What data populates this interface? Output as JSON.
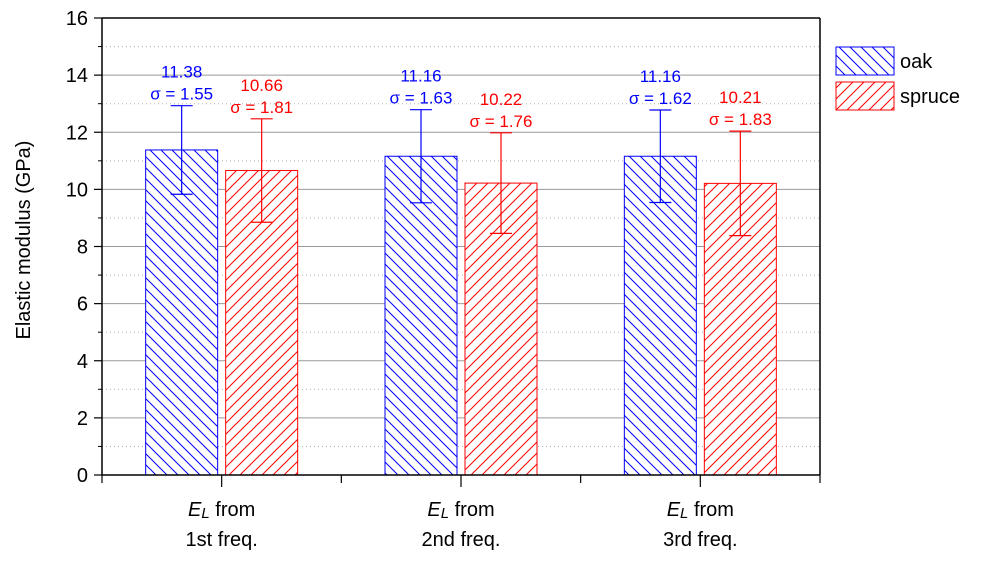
{
  "chart_data": {
    "type": "bar",
    "title": "",
    "xlabel": "",
    "ylabel": "Elastic modulus (GPa)",
    "ylim": [
      0,
      16
    ],
    "yticks": [
      0,
      2,
      4,
      6,
      8,
      10,
      12,
      14,
      16
    ],
    "grid": "dotted minor + solid major horizontal lines",
    "legend_position": "top-right, outside plot",
    "categories": [
      {
        "italic": "E",
        "italic_sub": "L",
        "line1_rest": " from",
        "line2": "1st freq."
      },
      {
        "italic": "E",
        "italic_sub": "L",
        "line1_rest": " from",
        "line2": "2nd freq."
      },
      {
        "italic": "E",
        "italic_sub": "L",
        "line1_rest": " from",
        "line2": "3rd freq."
      }
    ],
    "series": [
      {
        "name": "oak",
        "color": "#0000ff",
        "hatch": "backslash",
        "values": [
          11.38,
          11.16,
          11.16
        ],
        "errors": [
          1.55,
          1.63,
          1.62
        ],
        "value_labels": [
          "11.38",
          "11.16",
          "11.16"
        ],
        "sigma_labels": [
          "σ = 1.55",
          "σ = 1.63",
          "σ = 1.62"
        ]
      },
      {
        "name": "spruce",
        "color": "#ff0000",
        "hatch": "slash",
        "values": [
          10.66,
          10.22,
          10.21
        ],
        "errors": [
          1.81,
          1.76,
          1.83
        ],
        "value_labels": [
          "10.66",
          "10.22",
          "10.21"
        ],
        "sigma_labels": [
          "σ = 1.81",
          "σ = 1.76",
          "σ = 1.83"
        ]
      }
    ]
  }
}
